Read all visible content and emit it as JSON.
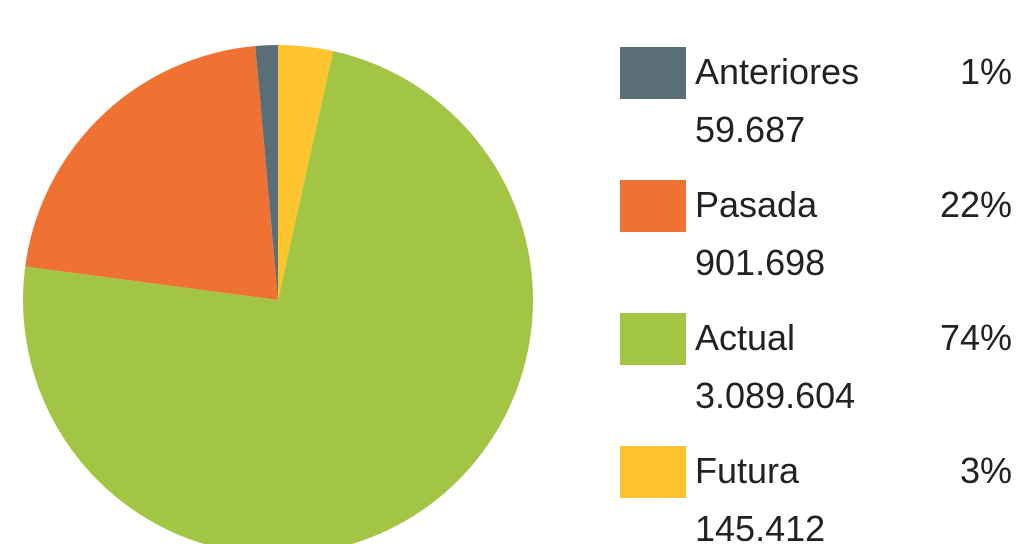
{
  "chart_data": {
    "type": "pie",
    "categories": [
      "Anteriores",
      "Pasada",
      "Actual",
      "Futura"
    ],
    "values": [
      59687,
      901698,
      3089604,
      145412
    ],
    "value_labels": [
      "59.687",
      "901.698",
      "3.089.604",
      "145.412"
    ],
    "percentage_labels": [
      "1%",
      "22%",
      "74%",
      "3%"
    ],
    "colors": [
      "#5a6e78",
      "#f07232",
      "#a2c644",
      "#fdc42e"
    ],
    "direction": "counterclockwise"
  }
}
